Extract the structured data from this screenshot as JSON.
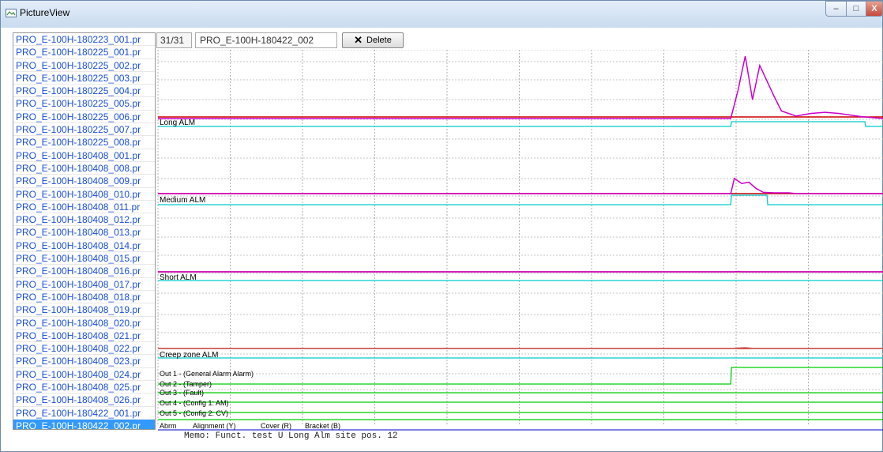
{
  "window": {
    "title": "PictureView",
    "icon": "picture-view-icon",
    "controls": [
      "minimize",
      "maximize",
      "close"
    ],
    "close_glyph": "X",
    "minimize_glyph": "–",
    "maximize_glyph": "□"
  },
  "file_list": {
    "items": [
      "PRO_E-100H-180223_001.pr",
      "PRO_E-100H-180225_001.pr",
      "PRO_E-100H-180225_002.pr",
      "PRO_E-100H-180225_003.pr",
      "PRO_E-100H-180225_004.pr",
      "PRO_E-100H-180225_005.pr",
      "PRO_E-100H-180225_006.pr",
      "PRO_E-100H-180225_007.pr",
      "PRO_E-100H-180225_008.pr",
      "PRO_E-100H-180408_001.pr",
      "PRO_E-100H-180408_008.pr",
      "PRO_E-100H-180408_009.pr",
      "PRO_E-100H-180408_010.pr",
      "PRO_E-100H-180408_011.pr",
      "PRO_E-100H-180408_012.pr",
      "PRO_E-100H-180408_013.pr",
      "PRO_E-100H-180408_014.pr",
      "PRO_E-100H-180408_015.pr",
      "PRO_E-100H-180408_016.pr",
      "PRO_E-100H-180408_017.pr",
      "PRO_E-100H-180408_018.pr",
      "PRO_E-100H-180408_019.pr",
      "PRO_E-100H-180408_020.pr",
      "PRO_E-100H-180408_021.pr",
      "PRO_E-100H-180408_022.pr",
      "PRO_E-100H-180408_023.pr",
      "PRO_E-100H-180408_024.pr",
      "PRO_E-100H-180408_025.pr",
      "PRO_E-100H-180408_026.pr",
      "PRO_E-100H-180422_001.pr",
      "PRO_E-100H-180422_002.pr"
    ],
    "selected": "PRO_E-100H-180422_002.pr"
  },
  "toolbar": {
    "counter": "31/31",
    "current_file": "PRO_E-100H-180422_002",
    "delete_label": "Delete",
    "delete_icon": "x-icon"
  },
  "chart_data": {
    "type": "line",
    "grid": true,
    "vertical_gridlines": 10,
    "panels": [
      {
        "label": "Long ALM",
        "signal_color": "#cc00cc",
        "threshold_color": "#cc0000",
        "alarm_color": "#00cccc",
        "signal": [
          [
            0,
            0
          ],
          [
            79,
            0
          ],
          [
            80,
            0.45
          ],
          [
            81,
            1.0
          ],
          [
            82,
            0.3
          ],
          [
            83,
            0.85
          ],
          [
            84,
            0.6
          ],
          [
            85,
            0.35
          ],
          [
            86,
            0.12
          ],
          [
            88,
            0.04
          ],
          [
            90,
            0.08
          ],
          [
            92,
            0.1
          ],
          [
            94,
            0.08
          ],
          [
            97,
            0.03
          ],
          [
            100,
            0.0
          ]
        ],
        "alarm": [
          [
            0,
            0
          ],
          [
            79,
            0
          ],
          [
            79.1,
            1
          ],
          [
            97.5,
            1
          ],
          [
            97.6,
            0
          ],
          [
            100,
            0
          ]
        ]
      },
      {
        "label": "Medium ALM",
        "signal_color": "#cc00cc",
        "threshold_color": "#cc0000",
        "alarm_color": "#00cccc",
        "signal": [
          [
            0,
            0
          ],
          [
            79,
            0
          ],
          [
            79.5,
            0.6
          ],
          [
            80.5,
            0.4
          ],
          [
            81.5,
            0.45
          ],
          [
            82.5,
            0.2
          ],
          [
            83.5,
            0.05
          ],
          [
            85,
            0.03
          ],
          [
            87,
            0.03
          ],
          [
            88,
            0.0
          ],
          [
            100,
            0
          ]
        ],
        "alarm": [
          [
            0,
            0
          ],
          [
            79,
            0
          ],
          [
            79.1,
            1
          ],
          [
            84,
            1
          ],
          [
            84.1,
            0
          ],
          [
            100,
            0
          ]
        ]
      },
      {
        "label": "Short ALM",
        "signal_color": "#cc00cc",
        "threshold_color": "#cc0000",
        "alarm_color": "#00cccc",
        "signal": [
          [
            0,
            0
          ],
          [
            79.5,
            0
          ],
          [
            80,
            0.05
          ],
          [
            80.5,
            0.0
          ],
          [
            100,
            0
          ]
        ],
        "alarm": [
          [
            0,
            0
          ],
          [
            100,
            0
          ]
        ]
      },
      {
        "label": "Creep zone ALM",
        "signal_color": "#cc6666",
        "threshold_color": "#cc0000",
        "alarm_color": "#00cccc",
        "signal": [
          [
            0,
            0
          ],
          [
            79,
            0
          ],
          [
            80,
            0.05
          ],
          [
            81,
            0.08
          ],
          [
            82,
            0.02
          ],
          [
            83,
            0.0
          ],
          [
            100,
            0
          ]
        ],
        "alarm": [
          [
            0,
            0
          ],
          [
            100,
            0
          ]
        ]
      }
    ],
    "outputs": [
      {
        "label": "Out 1 - (General Alarm Alarm)",
        "color": "#00cc00",
        "states": [
          [
            0,
            0
          ],
          [
            79,
            0
          ],
          [
            79.1,
            1
          ],
          [
            100,
            1
          ]
        ]
      },
      {
        "label": "Out 2 - (Tamper)",
        "color": "#00cc00",
        "states": [
          [
            0,
            0
          ],
          [
            100,
            0
          ]
        ]
      },
      {
        "label": "Out 3 - (Fault)",
        "color": "#00cc00",
        "states": [
          [
            0,
            0
          ],
          [
            100,
            0
          ]
        ]
      },
      {
        "label": "Out 4 - (Config 1: AM)",
        "color": "#00cc00",
        "states": [
          [
            0,
            0
          ],
          [
            100,
            0
          ]
        ]
      },
      {
        "label": "Out 5 - (Config 2: CV)",
        "color": "#00cc00",
        "states": [
          [
            0,
            0
          ],
          [
            100,
            0
          ]
        ]
      }
    ],
    "bottom_labels": [
      "Abrm",
      "Alignment (Y)",
      "Cover (R)",
      "Bracket (B)"
    ],
    "bottom_line_color": "#0000cc"
  },
  "memo": "Memo: Funct. test U Long Alm site pos. 12"
}
